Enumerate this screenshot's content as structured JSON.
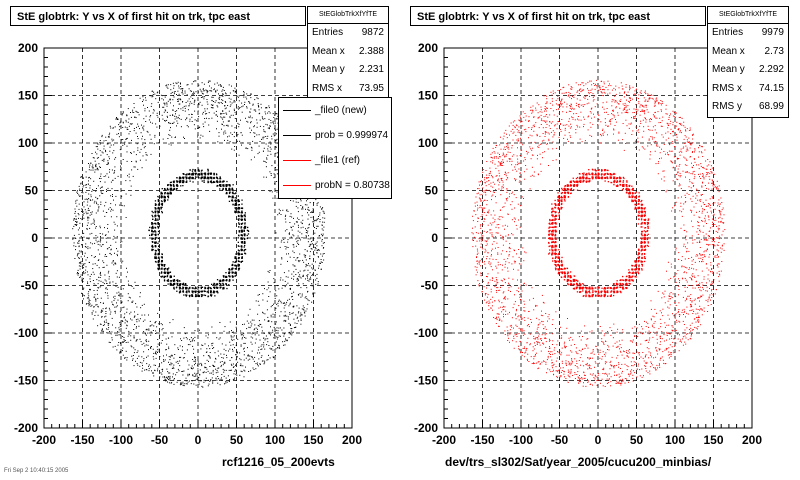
{
  "chart_data": [
    {
      "type": "scatter",
      "title": "StE globtrk: Y vs X of first hit on trk, tpc east",
      "xlabel": "rcf1216_05_200evts",
      "ylabel": "",
      "xlim": [
        -200,
        200
      ],
      "ylim": [
        -200,
        200
      ],
      "xticks": [
        -200,
        -150,
        -100,
        -50,
        0,
        50,
        100,
        150,
        200
      ],
      "yticks": [
        -200,
        -150,
        -100,
        -50,
        0,
        50,
        100,
        150,
        200
      ],
      "grid": true,
      "color": "#000000",
      "stats": {
        "header": "StEGlobTrkXfYfTE",
        "rows": [
          {
            "label": "Entries",
            "value": "9872"
          },
          {
            "label": "Mean x",
            "value": "2.388"
          },
          {
            "label": "Mean y",
            "value": "2.231"
          },
          {
            "label": "RMS x",
            "value": "73.95"
          }
        ]
      },
      "legend": {
        "position": "right",
        "entries": [
          {
            "label": "_file0 (new)",
            "color": "#000000"
          },
          {
            "label": "prob = 0.999974",
            "color": "#000000"
          },
          {
            "label": "_file1 (ref)",
            "color": "#ff0000"
          },
          {
            "label": "probN = 0.80738",
            "color": "#ff0000"
          }
        ]
      },
      "distribution": {
        "inner_ring": {
          "center_x": 0,
          "center_y": 5,
          "radius_x": 58,
          "radius_y": 62,
          "thickness": 10,
          "fraction": 0.35
        },
        "outer_band": {
          "radius_min": 95,
          "radius_max": 165,
          "fraction": 0.65
        }
      }
    },
    {
      "type": "scatter",
      "title": "StE globtrk: Y vs X of first hit on trk, tpc east",
      "xlabel": "dev/trs_sl302/Sat/year_2005/cucu200_minbias/",
      "ylabel": "",
      "xlim": [
        -200,
        200
      ],
      "ylim": [
        -200,
        200
      ],
      "xticks": [
        -200,
        -150,
        -100,
        -50,
        0,
        50,
        100,
        150,
        200
      ],
      "yticks": [
        -200,
        -150,
        -100,
        -50,
        0,
        50,
        100,
        150,
        200
      ],
      "grid": true,
      "color": "#ff0000",
      "stats": {
        "header": "StEGlobTrkXfYfTE",
        "rows": [
          {
            "label": "Entries",
            "value": "9979"
          },
          {
            "label": "Mean x",
            "value": "2.73"
          },
          {
            "label": "Mean y",
            "value": "2.292"
          },
          {
            "label": "RMS x",
            "value": "74.15"
          },
          {
            "label": "RMS y",
            "value": "68.99"
          }
        ]
      },
      "distribution": {
        "inner_ring": {
          "center_x": 0,
          "center_y": 5,
          "radius_x": 60,
          "radius_y": 62,
          "thickness": 10,
          "fraction": 0.35
        },
        "outer_band": {
          "radius_min": 95,
          "radius_max": 165,
          "fraction": 0.65
        }
      }
    }
  ],
  "footer": "Fri Sep 2 10:40:15 2005"
}
